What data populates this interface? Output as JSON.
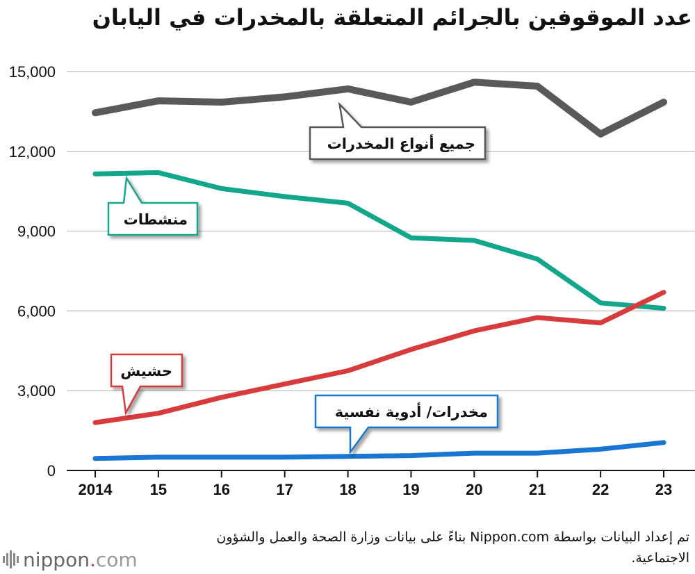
{
  "title": "عدد الموقوفين بالجرائم المتعلقة بالمخدرات في اليابان",
  "source": "تم إعداد البيانات بواسطة Nippon.com بناءً على بيانات وزارة الصحة والعمل والشؤون الاجتماعية.",
  "logo": {
    "name": "nippon",
    "dot": ".",
    "tld": "com"
  },
  "chart_data": {
    "type": "line",
    "categories": [
      "2014",
      "15",
      "16",
      "17",
      "18",
      "19",
      "20",
      "21",
      "22",
      "23"
    ],
    "ylim": [
      0,
      15000
    ],
    "yticks": [
      0,
      3000,
      6000,
      9000,
      12000,
      15000
    ],
    "ytick_labels": [
      "0",
      "3,000",
      "6,000",
      "9,000",
      "12,000",
      "15,000"
    ],
    "grid": "horizontal",
    "series": [
      {
        "name": "جميع أنواع المخدرات",
        "color": "#595959",
        "values": [
          13450,
          13900,
          13850,
          14050,
          14350,
          13850,
          14600,
          14450,
          12650,
          13850
        ]
      },
      {
        "name": "منشطات",
        "color": "#12a68a",
        "values": [
          11150,
          11200,
          10600,
          10300,
          10050,
          8750,
          8650,
          7950,
          6300,
          6100
        ]
      },
      {
        "name": "حشيش",
        "color": "#d83b3b",
        "values": [
          1800,
          2150,
          2750,
          3250,
          3750,
          4550,
          5250,
          5750,
          5550,
          6700
        ]
      },
      {
        "name": "مخدرات/ أدوية نفسية",
        "color": "#1976d2",
        "values": [
          450,
          500,
          500,
          500,
          530,
          560,
          650,
          650,
          800,
          1050
        ]
      }
    ]
  }
}
